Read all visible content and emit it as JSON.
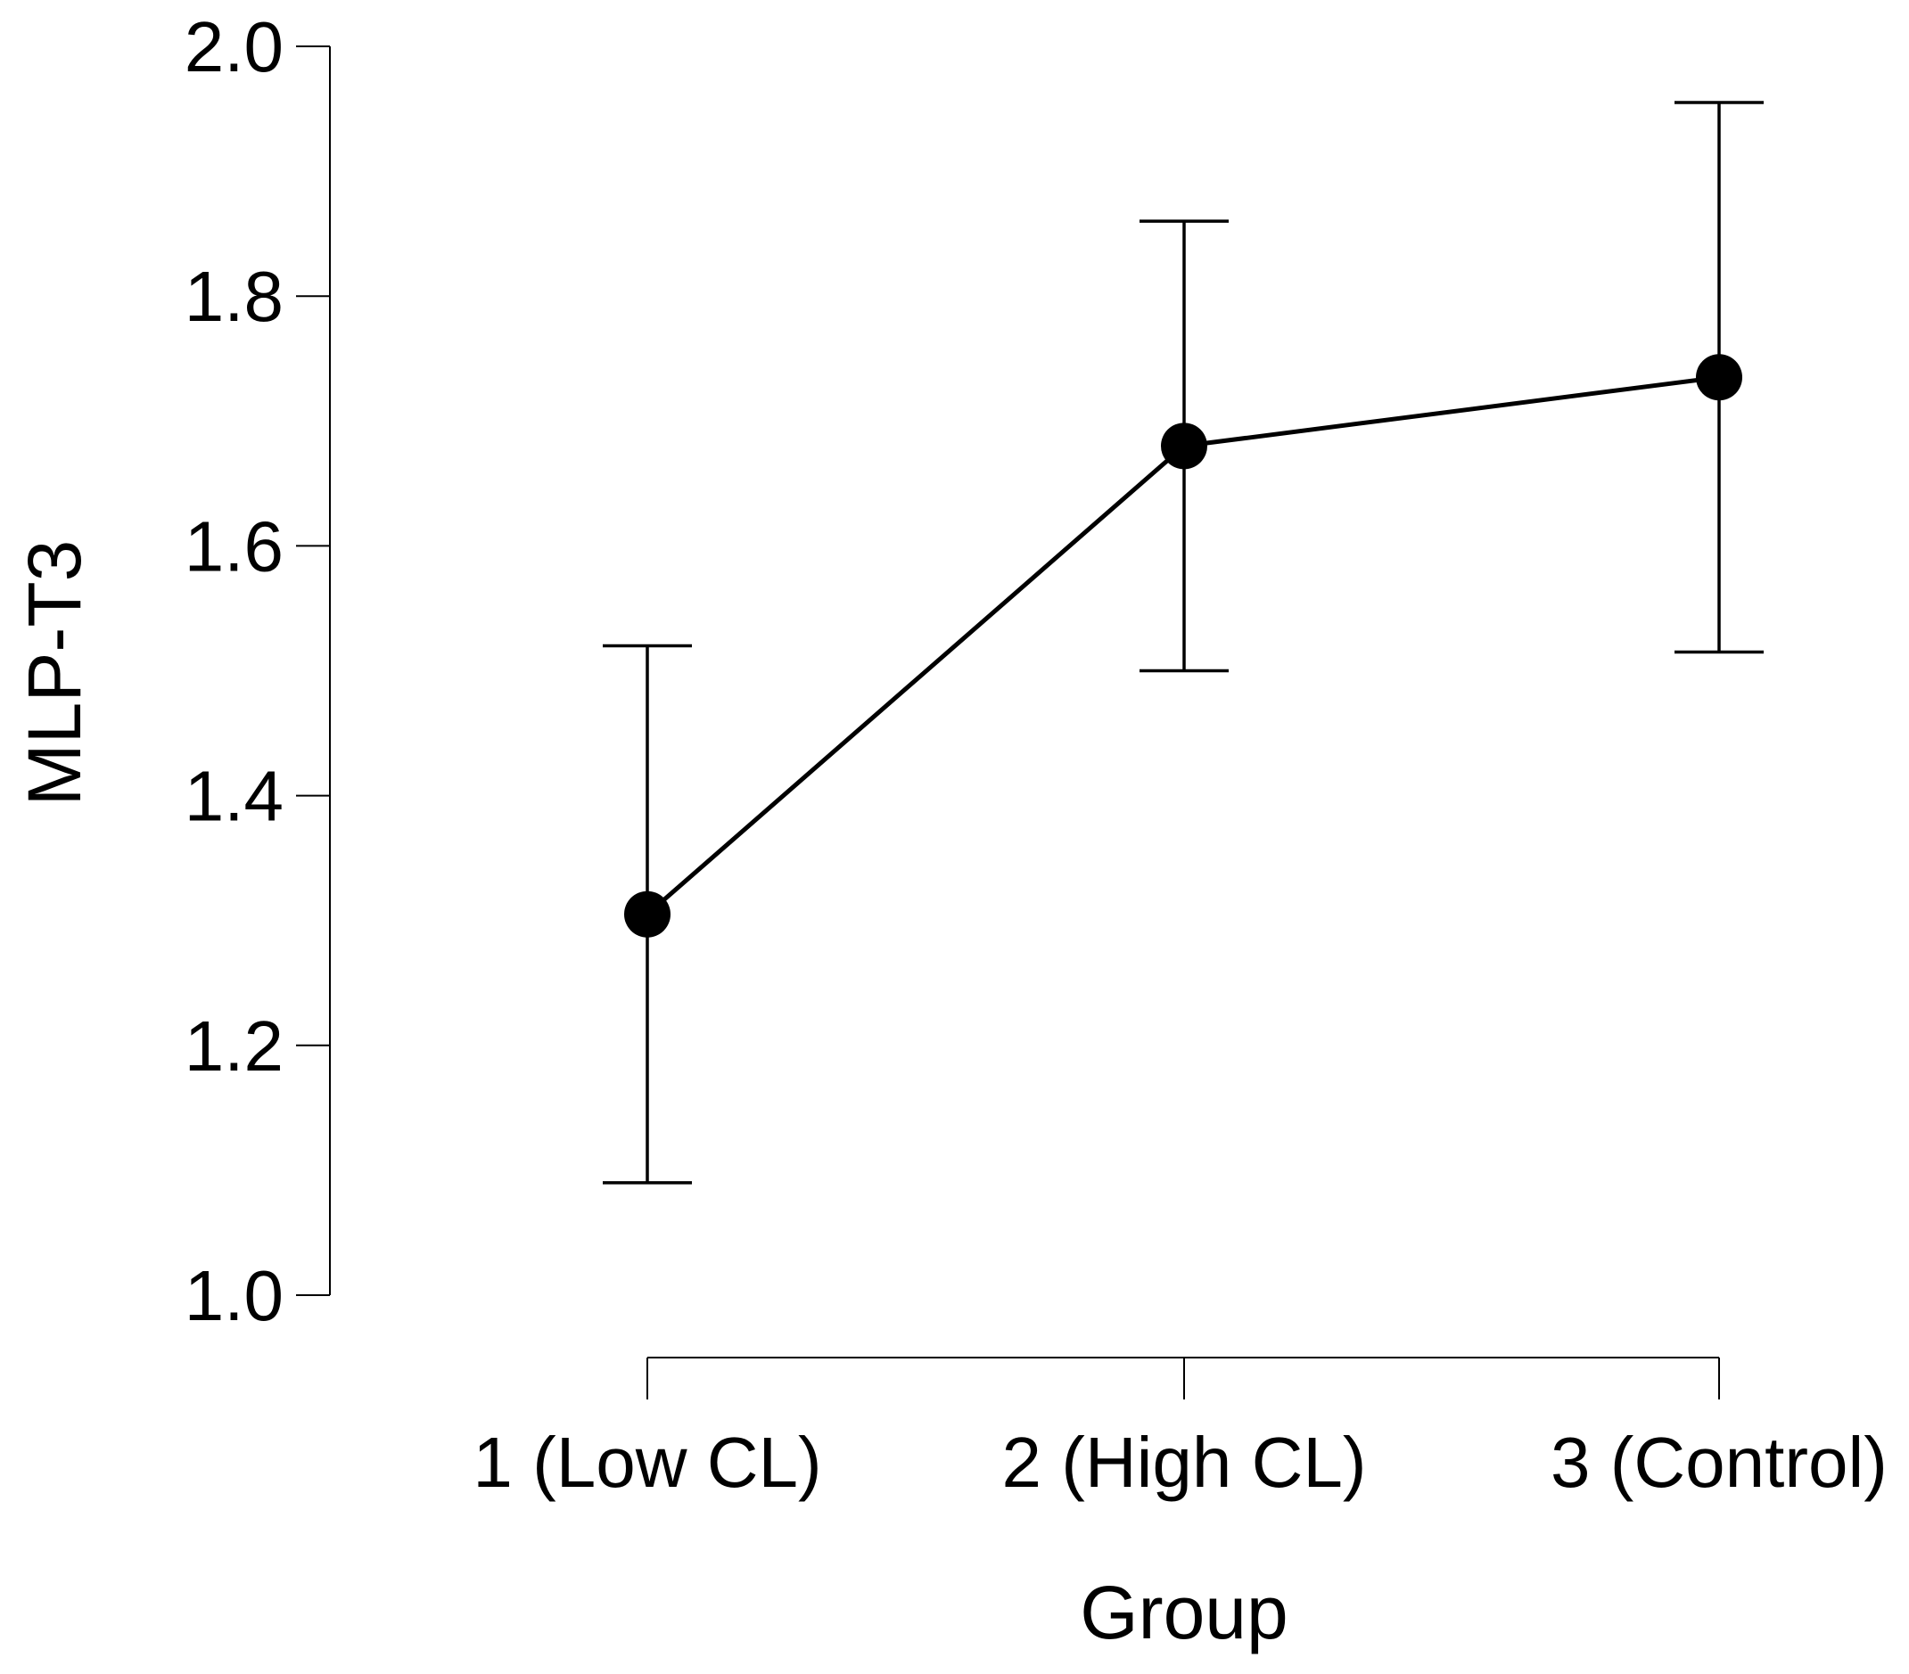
{
  "chart_data": {
    "type": "line",
    "title": "",
    "xlabel": "Group",
    "ylabel": "MLP-T3",
    "categories": [
      "1 (Low CL)",
      "2 (High CL)",
      "3 (Control)"
    ],
    "series": [
      {
        "name": "MLP-T3",
        "values": [
          1.305,
          1.68,
          1.735
        ],
        "error_lower": [
          1.09,
          1.5,
          1.515
        ],
        "error_upper": [
          1.52,
          1.86,
          1.955
        ]
      }
    ],
    "ylim": [
      1.0,
      2.0
    ],
    "yticks": [
      1.0,
      1.2,
      1.4,
      1.6,
      1.8,
      2.0
    ],
    "ytick_labels": [
      "1.0",
      "1.2",
      "1.4",
      "1.6",
      "1.8",
      "2.0"
    ],
    "grid": false,
    "legend": "none",
    "colors": {
      "line": "#000000",
      "point": "#000000",
      "background": "#ffffff"
    }
  }
}
